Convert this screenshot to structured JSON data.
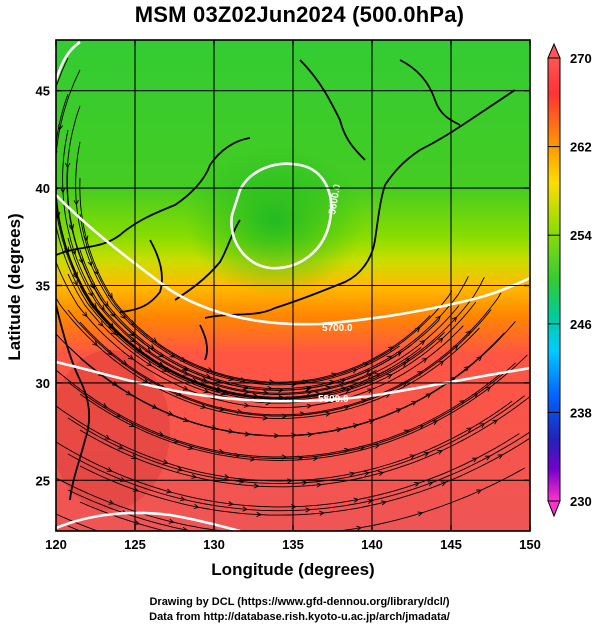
{
  "title": "MSM 03Z02Jun2024 (500.0hPa)",
  "xlabel": "Longitude (degrees)",
  "ylabel": "Latitude  (degrees)",
  "footer": {
    "line1": "Drawing by DCL (https://www.gfd-dennou.org/library/dcl/)",
    "line2": "Data from http://database.rish.kyoto-u.ac.jp/arch/jmadata/"
  },
  "map": {
    "lon_range": [
      120,
      150
    ],
    "lat_range": [
      22.4,
      47.6
    ],
    "x_ticks": [
      120,
      125,
      130,
      135,
      140,
      145,
      150
    ],
    "y_ticks": [
      25,
      30,
      35,
      40,
      45
    ],
    "grid_lons": [
      125,
      130,
      135,
      140,
      145
    ],
    "grid_lats": [
      25,
      30,
      35,
      40,
      45
    ]
  },
  "colorbar": {
    "min": 230,
    "max": 270,
    "tick_labels": [
      "270",
      "262",
      "254",
      "246",
      "238",
      "230"
    ],
    "tick_values": [
      270,
      262,
      254,
      246,
      238,
      230
    ],
    "colors": [
      "#ff33cc",
      "#9900cc",
      "#2222cc",
      "#0066ff",
      "#00ccff",
      "#00ddaa",
      "#33cc33",
      "#66dd00",
      "#ccee00",
      "#ffcc00",
      "#ff7700",
      "#ff3333",
      "#ee6666"
    ]
  },
  "contours": [
    {
      "label": "5800.0"
    },
    {
      "label": "5700.0"
    },
    {
      "label": "5600.0"
    }
  ]
}
